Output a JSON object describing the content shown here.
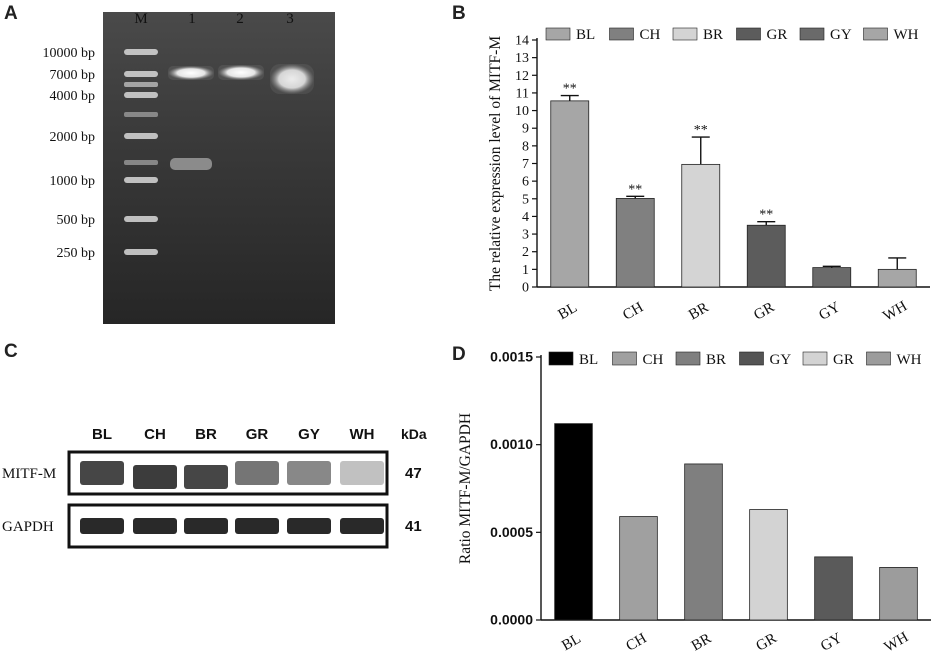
{
  "panels": {
    "a": "A",
    "b": "B",
    "c": "C",
    "d": "D"
  },
  "gel": {
    "lane_labels": [
      "M",
      "1",
      "2",
      "3"
    ],
    "ladder": [
      "10000 bp",
      "7000 bp",
      "4000 bp",
      "2000 bp",
      "1000 bp",
      "500 bp",
      "250 bp"
    ],
    "ladder_bp": [
      10000,
      7000,
      4000,
      2000,
      1000,
      500,
      250
    ]
  },
  "blot": {
    "columns": [
      "BL",
      "CH",
      "BR",
      "GR",
      "GY",
      "WH"
    ],
    "kda_header": "kDa",
    "rows": [
      {
        "name": "MITF-M",
        "kda": "47",
        "relative_intensity": [
          0.85,
          0.9,
          0.85,
          0.6,
          0.5,
          0.2
        ]
      },
      {
        "name": "GAPDH",
        "kda": "41",
        "relative_intensity": [
          1,
          1,
          1,
          1,
          1,
          1
        ]
      }
    ]
  },
  "chart_data": [
    {
      "type": "bar",
      "ylabel": "The relative expression level of MITF-M",
      "xlabel": "",
      "categories": [
        "BL",
        "CH",
        "BR",
        "GR",
        "GY",
        "WH"
      ],
      "values": [
        10.55,
        5.02,
        6.95,
        3.5,
        1.1,
        1.0
      ],
      "errors": [
        0.3,
        0.12,
        1.55,
        0.2,
        0.07,
        0.65
      ],
      "annotations": [
        "**",
        "**",
        "**",
        "**",
        "",
        ""
      ],
      "colors": [
        "#a6a6a6",
        "#808080",
        "#d4d4d4",
        "#5c5c5c",
        "#6a6a6a",
        "#a6a6a6"
      ],
      "legend": [
        "BL",
        "CH",
        "BR",
        "GR",
        "GY",
        "WH"
      ],
      "legend_colors": [
        "#a6a6a6",
        "#808080",
        "#d4d4d4",
        "#5c5c5c",
        "#6a6a6a",
        "#a6a6a6"
      ],
      "legend_position": "top",
      "ylim": [
        0,
        14
      ],
      "yticks": [
        "0",
        "1",
        "2",
        "3",
        "4",
        "5",
        "6",
        "7",
        "8",
        "9",
        "10",
        "11",
        "12",
        "13",
        "14"
      ],
      "grid": false
    },
    {
      "type": "bar",
      "ylabel": "Ratio MITF-M/GAPDH",
      "xlabel": "",
      "categories": [
        "BL",
        "CH",
        "BR",
        "GR",
        "GY",
        "WH"
      ],
      "values": [
        0.00112,
        0.00059,
        0.00089,
        0.00063,
        0.00036,
        0.0003
      ],
      "colors": [
        "#000000",
        "#a0a0a0",
        "#7f7f7f",
        "#d3d3d3",
        "#5a5a5a",
        "#9c9c9c"
      ],
      "legend": [
        "BL",
        "CH",
        "BR",
        "GY",
        "GR",
        "WH"
      ],
      "legend_colors": [
        "#000000",
        "#a0a0a0",
        "#7f7f7f",
        "#545454",
        "#d3d3d3",
        "#9c9c9c"
      ],
      "legend_position": "top",
      "ylim": [
        0,
        0.0015
      ],
      "yticks": [
        "0.0000",
        "0.0005",
        "0.0010",
        "0.0015"
      ],
      "grid": false
    }
  ]
}
